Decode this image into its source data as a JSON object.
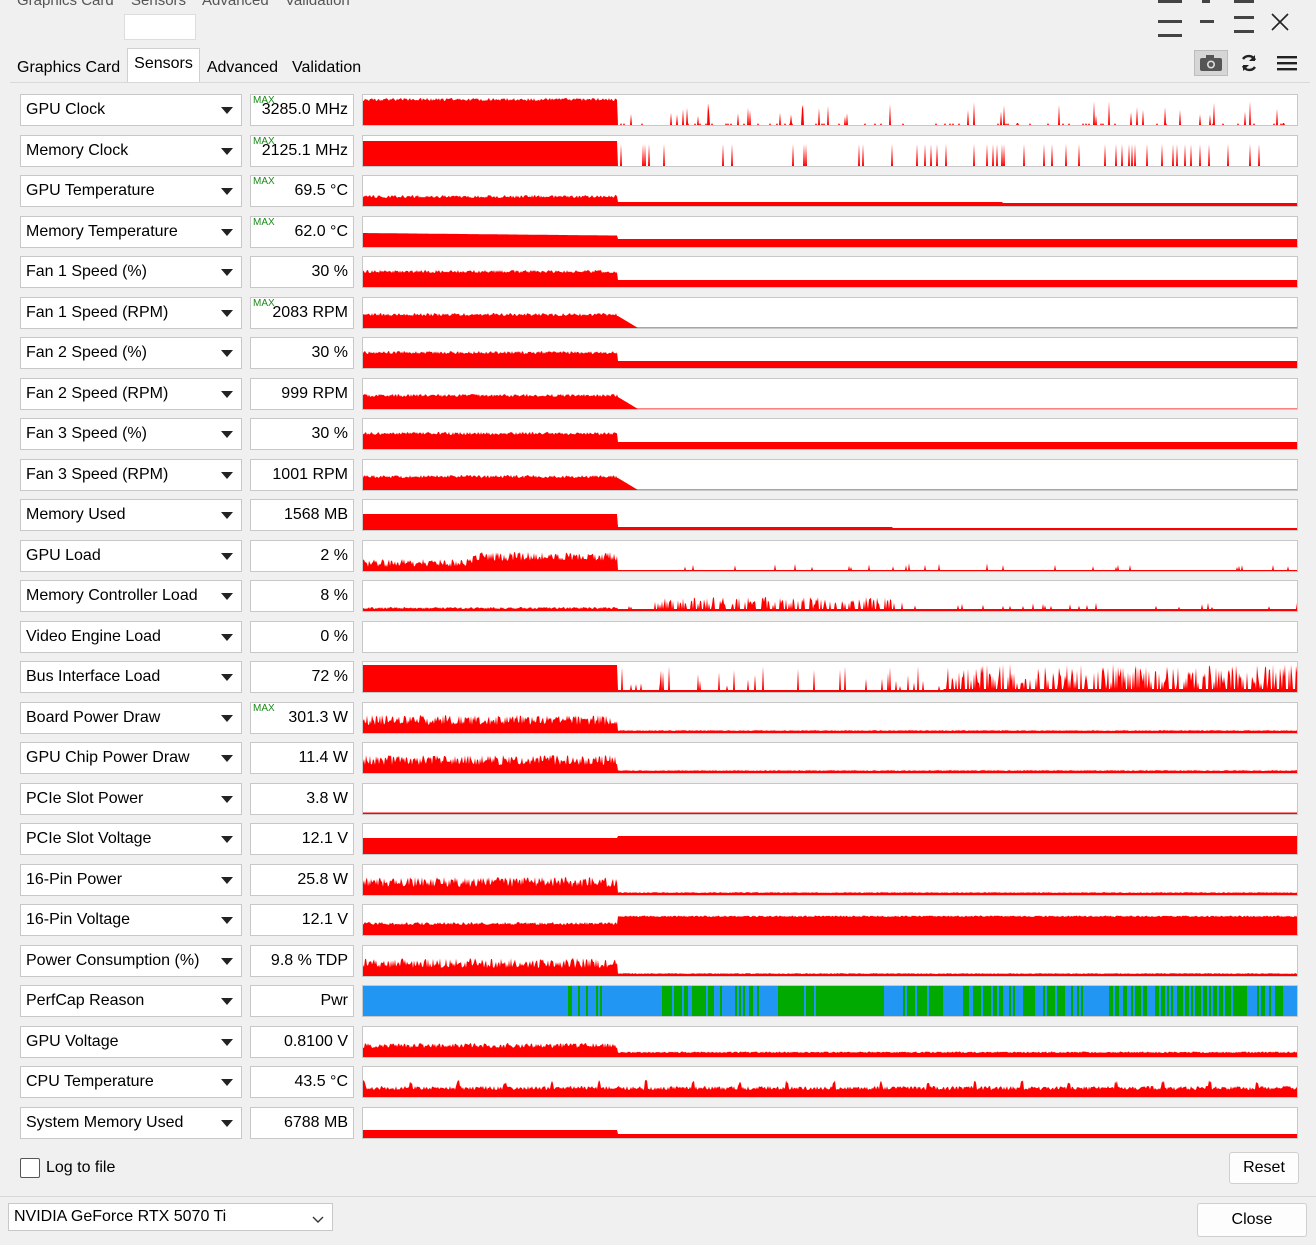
{
  "ghost_tabs": [
    "Graphics Card",
    "Sensors",
    "Advanced",
    "Validation"
  ],
  "tabs": [
    {
      "label": "Graphics Card",
      "active": false
    },
    {
      "label": "Sensors",
      "active": true
    },
    {
      "label": "Advanced",
      "active": false
    },
    {
      "label": "Validation",
      "active": false
    }
  ],
  "toolbar": {
    "icons": [
      "camera-icon",
      "refresh-icon",
      "menu-icon"
    ]
  },
  "window": {
    "close_icon": "close-icon"
  },
  "max_tag_label": "MAX",
  "sensors": [
    {
      "name": "GPU Clock",
      "value": "3285.0 MHz",
      "max": true,
      "graph": "clock"
    },
    {
      "name": "Memory Clock",
      "value": "2125.1 MHz",
      "max": true,
      "graph": "memclock"
    },
    {
      "name": "GPU Temperature",
      "value": "69.5 °C",
      "max": true,
      "graph": "temp"
    },
    {
      "name": "Memory Temperature",
      "value": "62.0 °C",
      "max": true,
      "graph": "memtemp"
    },
    {
      "name": "Fan 1 Speed (%)",
      "value": "30 %",
      "max": false,
      "graph": "fanpct"
    },
    {
      "name": "Fan 1 Speed (RPM)",
      "value": "2083 RPM",
      "max": true,
      "graph": "fanrpm"
    },
    {
      "name": "Fan 2 Speed (%)",
      "value": "30 %",
      "max": false,
      "graph": "fanpct"
    },
    {
      "name": "Fan 2 Speed (RPM)",
      "value": "999 RPM",
      "max": false,
      "graph": "fanrpm"
    },
    {
      "name": "Fan 3 Speed (%)",
      "value": "30 %",
      "max": false,
      "graph": "fanpct"
    },
    {
      "name": "Fan 3 Speed (RPM)",
      "value": "1001 RPM",
      "max": false,
      "graph": "fanrpm"
    },
    {
      "name": "Memory Used",
      "value": "1568 MB",
      "max": false,
      "graph": "memused"
    },
    {
      "name": "GPU Load",
      "value": "2 %",
      "max": false,
      "graph": "load"
    },
    {
      "name": "Memory Controller Load",
      "value": "8 %",
      "max": false,
      "graph": "mcload"
    },
    {
      "name": "Video Engine Load",
      "value": "0 %",
      "max": false,
      "graph": "empty"
    },
    {
      "name": "Bus Interface Load",
      "value": "72 %",
      "max": false,
      "graph": "bus"
    },
    {
      "name": "Board Power Draw",
      "value": "301.3 W",
      "max": true,
      "graph": "power"
    },
    {
      "name": "GPU Chip Power Draw",
      "value": "11.4 W",
      "max": false,
      "graph": "power"
    },
    {
      "name": "PCIe Slot Power",
      "value": "3.8 W",
      "max": false,
      "graph": "pcie"
    },
    {
      "name": "PCIe Slot Voltage",
      "value": "12.1 V",
      "max": false,
      "graph": "volt"
    },
    {
      "name": "16-Pin Power",
      "value": "25.8 W",
      "max": false,
      "graph": "power"
    },
    {
      "name": "16-Pin Voltage",
      "value": "12.1 V",
      "max": false,
      "graph": "pinvolt"
    },
    {
      "name": "Power Consumption (%)",
      "value": "9.8 % TDP",
      "max": false,
      "graph": "power"
    },
    {
      "name": "PerfCap Reason",
      "value": "Pwr",
      "max": false,
      "graph": "perfcap"
    },
    {
      "name": "GPU Voltage",
      "value": "0.8100 V",
      "max": false,
      "graph": "gpuvolt"
    },
    {
      "name": "CPU Temperature",
      "value": "43.5 °C",
      "max": false,
      "graph": "cputemp"
    },
    {
      "name": "System Memory Used",
      "value": "6788 MB",
      "max": false,
      "graph": "sysmem"
    }
  ],
  "colors": {
    "graph_fill": "#ff0000",
    "perfcap_blue": "#2196f3",
    "perfcap_green": "#00aa00",
    "max_tag": "#1a8a1a"
  },
  "log_to_file": {
    "label": "Log to file",
    "checked": false
  },
  "reset_label": "Reset",
  "gpu_selector": {
    "selected": "NVIDIA GeForce RTX 5070 Ti"
  },
  "close_label": "Close"
}
